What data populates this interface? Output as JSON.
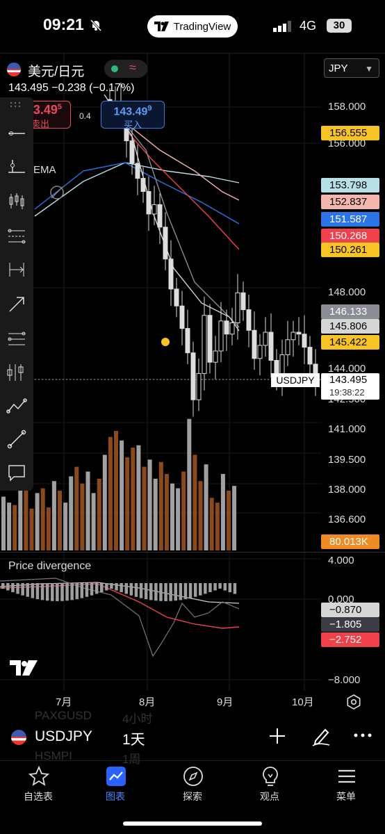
{
  "status_bar": {
    "time": "09:21",
    "app_pill": "TradingView",
    "network": "4G",
    "battery": "30"
  },
  "header": {
    "symbol_title": "美元/日元",
    "price": "143.495",
    "change": "−0.238",
    "change_pct": "(−0.17%)",
    "currency_select": "JPY"
  },
  "trade": {
    "sell_price": "3.49",
    "sell_price_sup": "5",
    "sell_label": "卖出",
    "spread": "0.4",
    "buy_price": "143.49",
    "buy_price_sup": "9",
    "buy_label": "买入",
    "indicator_label": "EMA"
  },
  "price_axis": [
    {
      "label": "158.000"
    },
    {
      "label": "156.000"
    },
    {
      "label": "148.000"
    },
    {
      "label": "144.000"
    },
    {
      "label": "142.500"
    },
    {
      "label": "141.000"
    },
    {
      "label": "139.500"
    },
    {
      "label": "138.000"
    },
    {
      "label": "136.600"
    }
  ],
  "price_tags": [
    {
      "value": "156.555",
      "bg": "#f7c325",
      "fg": "#000000"
    },
    {
      "value": "153.798",
      "bg": "#b7e0e7",
      "fg": "#000000"
    },
    {
      "value": "152.837",
      "bg": "#f4b6ad",
      "fg": "#000000"
    },
    {
      "value": "151.587",
      "bg": "#2a74e6",
      "fg": "#ffffff"
    },
    {
      "value": "150.268",
      "bg": "#f0404c",
      "fg": "#ffffff"
    },
    {
      "value": "150.261",
      "bg": "#f7c325",
      "fg": "#000000"
    },
    {
      "value": "146.133",
      "bg": "#8a8d93",
      "fg": "#ffffff"
    },
    {
      "value": "145.806",
      "bg": "#d6d6d6",
      "fg": "#000000"
    },
    {
      "value": "145.422",
      "bg": "#f7c325",
      "fg": "#000000"
    },
    {
      "value": "80.013K",
      "bg": "#f08a24",
      "fg": "#ffffff"
    }
  ],
  "current": {
    "symbol_tag": "USDJPY",
    "price": "143.495",
    "countdown": "19:38:22"
  },
  "divergence": {
    "title": "Price divergence",
    "axis": [
      {
        "label": "4.000"
      },
      {
        "label": "0.000"
      },
      {
        "label": "−8.000"
      }
    ],
    "tags": [
      {
        "value": "−0.870",
        "bg": "#d6d6d6",
        "fg": "#000000"
      },
      {
        "value": "−1.805",
        "bg": "#3a3d45",
        "fg": "#ffffff"
      },
      {
        "value": "−2.752",
        "bg": "#f0404c",
        "fg": "#ffffff"
      }
    ]
  },
  "time_axis": [
    {
      "label": "7月"
    },
    {
      "label": "8月"
    },
    {
      "label": "9月"
    },
    {
      "label": "10月"
    }
  ],
  "symbol_bar": {
    "symbol": "USDJPY",
    "interval": "1天",
    "ghost_symbol_1": "PAXGUSD",
    "ghost_interval_1": "4小时",
    "ghost_symbol_2": "HSMPI",
    "ghost_interval_2": "1周"
  },
  "tabs": [
    {
      "label": "自选表",
      "icon": "star-icon",
      "active": false
    },
    {
      "label": "图表",
      "icon": "chart-icon",
      "active": true
    },
    {
      "label": "探索",
      "icon": "compass-icon",
      "active": false
    },
    {
      "label": "观点",
      "icon": "lightbulb-icon",
      "active": false
    },
    {
      "label": "菜单",
      "icon": "menu-icon",
      "active": false
    }
  ],
  "colors": {
    "up": "#c8c8c8",
    "down": "#b85c1a",
    "accent_blue": "#2962ff",
    "sell_red": "#e84a5f"
  },
  "chart_data": {
    "type": "candlestick",
    "title": "美元/日元",
    "x_ticks": [
      "7月",
      "8月",
      "9月",
      "10月"
    ],
    "y_range": [
      136.6,
      158.0
    ],
    "last_price": 143.495,
    "series": [
      {
        "name": "EMA",
        "values": [
          156.555,
          153.798,
          152.837,
          151.587,
          150.268,
          150.261,
          146.133,
          145.806,
          145.422
        ]
      }
    ],
    "closes_approx": [
      157.8,
      158.3,
      157.6,
      156.2,
      155.0,
      154.2,
      153.5,
      152.3,
      152.8,
      151.6,
      149.9,
      148.3,
      147.4,
      146.2,
      144.9,
      142.4,
      143.8,
      146.9,
      144.4,
      145.0,
      146.6,
      145.9,
      146.5,
      148.1,
      147.2,
      146.1,
      144.6,
      145.3,
      146.0,
      144.5,
      143.5,
      144.8,
      145.6,
      146.0,
      145.9,
      145.2,
      144.3,
      143.5
    ],
    "volume_last": "80.013K",
    "divergence": {
      "title": "Price divergence",
      "y_range": [
        -8.0,
        4.0
      ],
      "values": [
        -0.87,
        -1.805,
        -2.752
      ]
    }
  }
}
